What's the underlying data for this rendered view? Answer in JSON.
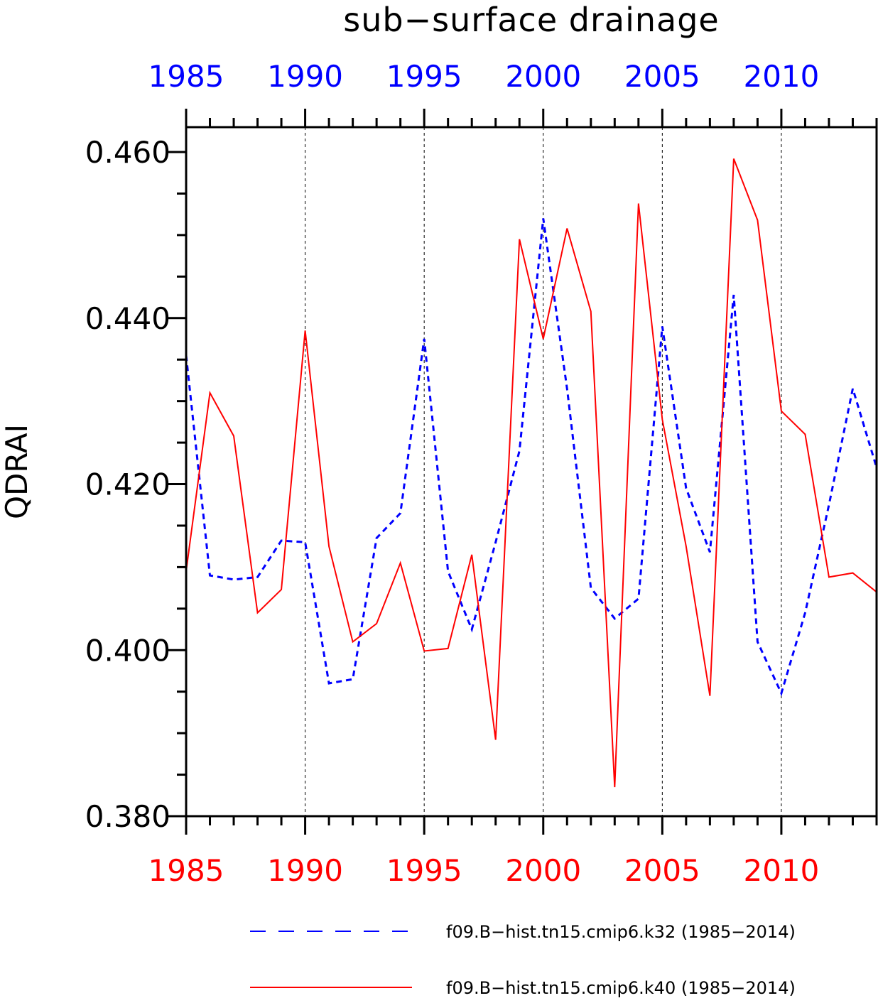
{
  "chart_data": {
    "type": "line",
    "title": "sub−surface drainage",
    "ylabel": "QDRAI",
    "xlabel": "",
    "xlim": [
      1985,
      2014
    ],
    "ylim": [
      0.38,
      0.463
    ],
    "yticks": [
      "0.380",
      "0.400",
      "0.420",
      "0.440",
      "0.460"
    ],
    "ytick_values": [
      0.38,
      0.4,
      0.42,
      0.44,
      0.46
    ],
    "xticks": [
      "1985",
      "1990",
      "1995",
      "2000",
      "2005",
      "2010"
    ],
    "xtick_values": [
      1985,
      1990,
      1995,
      2000,
      2005,
      2010
    ],
    "grid": "vertical dashed lines at major x ticks",
    "legend_position": "bottom",
    "x": [
      1985,
      1986,
      1987,
      1988,
      1989,
      1990,
      1991,
      1992,
      1993,
      1994,
      1995,
      1996,
      1997,
      1998,
      1999,
      2000,
      2001,
      2002,
      2003,
      2004,
      2005,
      2006,
      2007,
      2008,
      2009,
      2010,
      2011,
      2012,
      2013,
      2014
    ],
    "series": [
      {
        "name": "f09.B−hist.tn15.cmip6.k32 (1985−2014)",
        "color": "#0000ff",
        "style": "dashed",
        "values": [
          0.4355,
          0.409,
          0.4085,
          0.4088,
          0.4132,
          0.413,
          0.396,
          0.3965,
          0.4135,
          0.4165,
          0.4375,
          0.4095,
          0.4025,
          0.413,
          0.424,
          0.452,
          0.4315,
          0.4075,
          0.4038,
          0.4062,
          0.439,
          0.4195,
          0.4118,
          0.4428,
          0.401,
          0.3948,
          0.4045,
          0.4175,
          0.4315,
          0.422
        ]
      },
      {
        "name": "f09.B−hist.tn15.cmip6.k40 (1985−2014)",
        "color": "#ff0000",
        "style": "solid",
        "values": [
          0.4095,
          0.431,
          0.4258,
          0.4045,
          0.4073,
          0.4385,
          0.4125,
          0.401,
          0.4032,
          0.4105,
          0.3999,
          0.4002,
          0.4115,
          0.3892,
          0.4495,
          0.4375,
          0.4508,
          0.4408,
          0.3835,
          0.4538,
          0.4278,
          0.4125,
          0.3945,
          0.4592,
          0.4518,
          0.4288,
          0.426,
          0.4088,
          0.4093,
          0.407
        ]
      }
    ]
  }
}
